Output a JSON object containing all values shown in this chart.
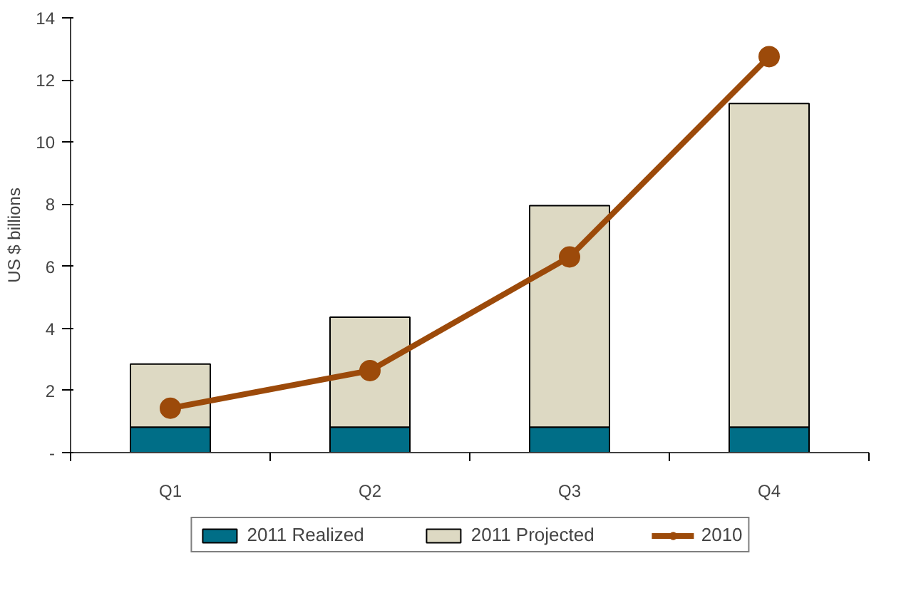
{
  "chart_data": {
    "type": "bar",
    "stacked": true,
    "ylabel": "US $ billions",
    "categories": [
      "Q1",
      "Q2",
      "Q3",
      "Q4"
    ],
    "series": [
      {
        "name": "2011 Realized",
        "color": "#006e87",
        "values": [
          0.82,
          0.82,
          0.82,
          0.82
        ]
      },
      {
        "name": "2011 Projected",
        "color": "#ddd9c3",
        "values": [
          2.03,
          3.54,
          7.13,
          10.42
        ]
      },
      {
        "name": "2010",
        "type": "line",
        "color": "#9c4a0a",
        "values": [
          1.43,
          2.64,
          6.3,
          12.75
        ]
      }
    ],
    "ylim": [
      0,
      14
    ],
    "yticks": [
      {
        "value": 0,
        "label": "-"
      },
      2,
      4,
      6,
      8,
      10,
      12,
      14
    ],
    "grid": false,
    "legend": "bottom",
    "marker": "circle"
  }
}
